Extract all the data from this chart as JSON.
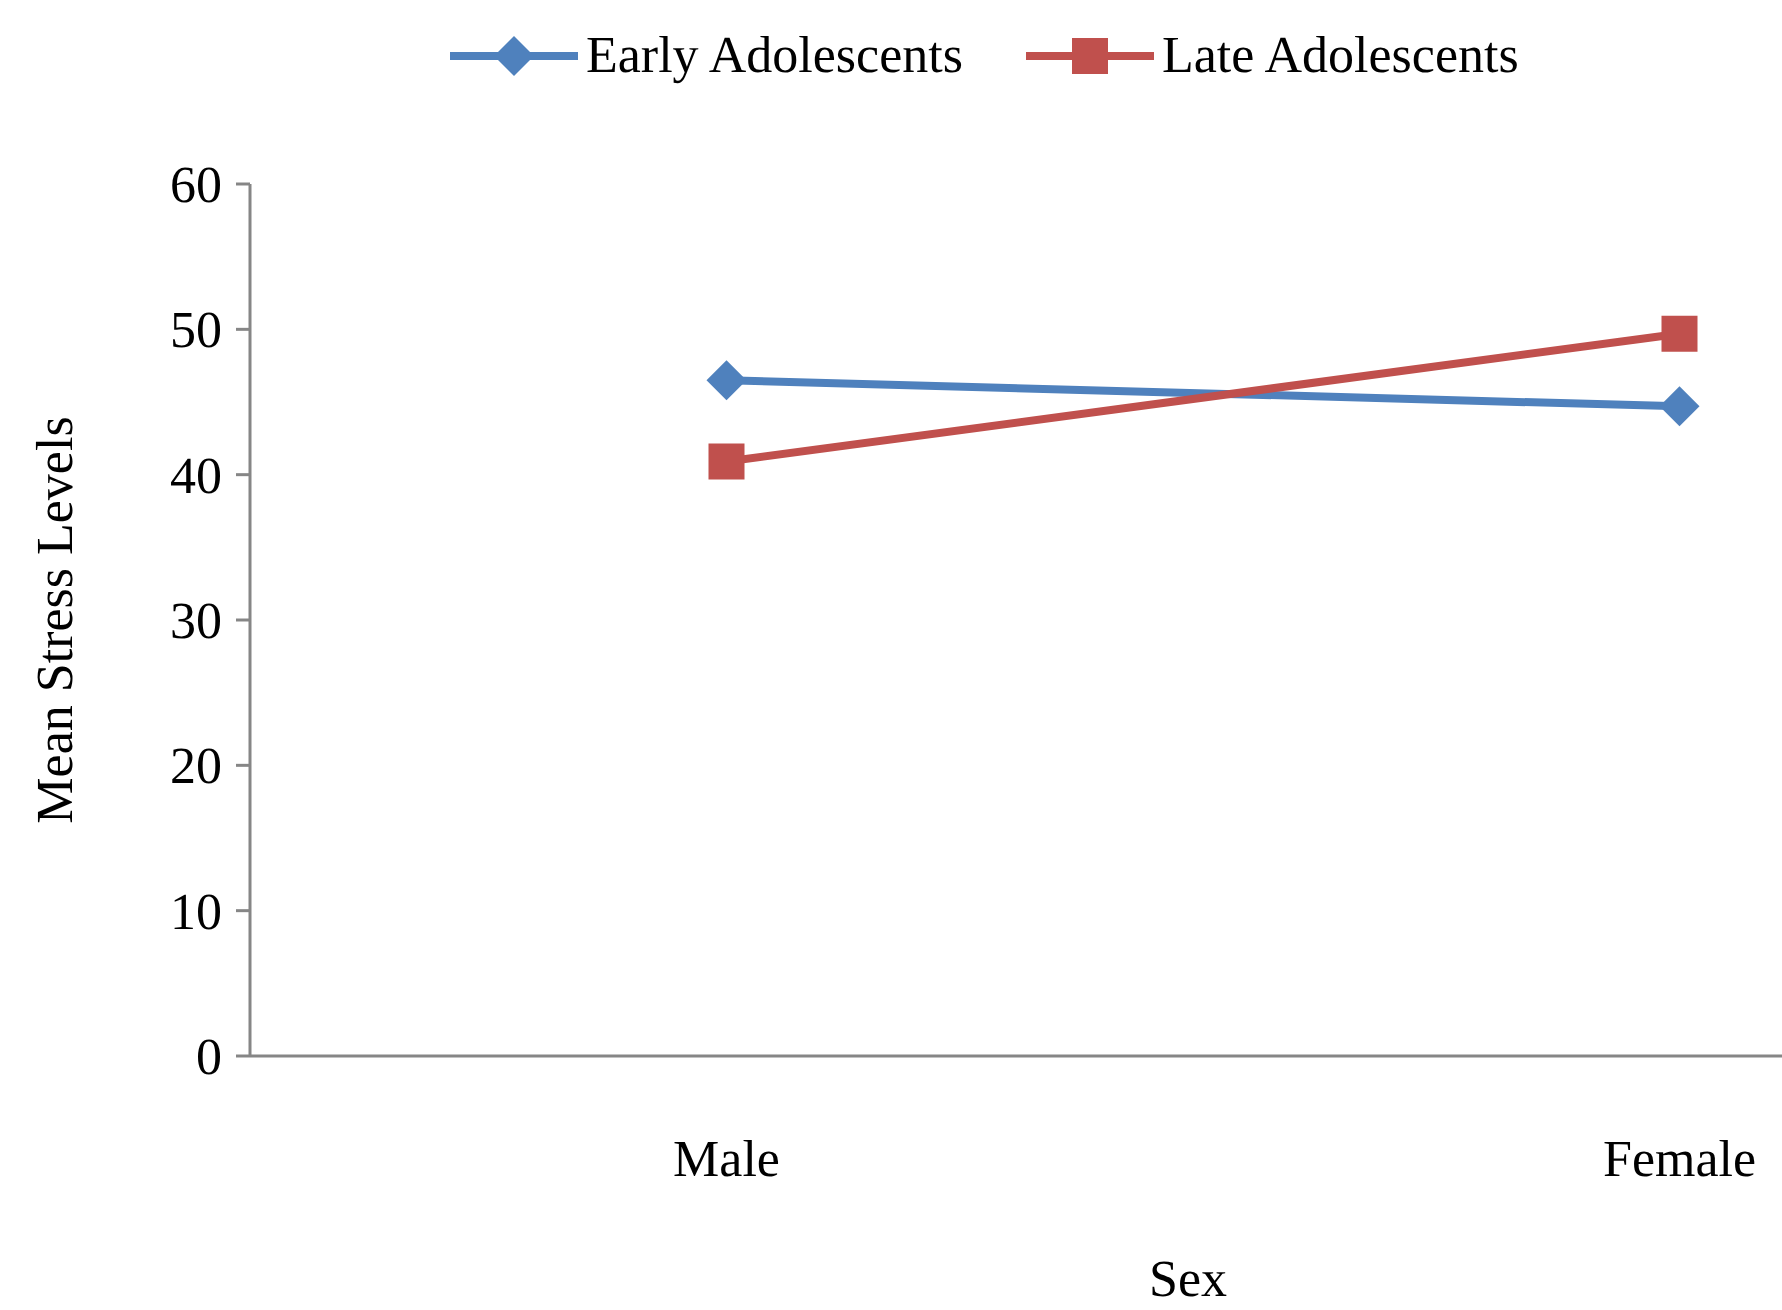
{
  "chart_data": {
    "type": "line",
    "xlabel": "Sex",
    "ylabel": "Mean Stress Levels",
    "categories": [
      "Male",
      "Female"
    ],
    "series": [
      {
        "name": "Early Adolescents",
        "color": "#4f81bd",
        "marker": "diamond",
        "values": [
          46.5,
          44.7
        ]
      },
      {
        "name": "Late Adolescents",
        "color": "#c0504d",
        "marker": "square",
        "values": [
          40.9,
          49.7
        ]
      }
    ],
    "ylim": [
      0,
      60
    ],
    "yticks": [
      0,
      10,
      20,
      30,
      40,
      50,
      60
    ],
    "grid": false,
    "legend": "top",
    "line_style": "solid"
  }
}
